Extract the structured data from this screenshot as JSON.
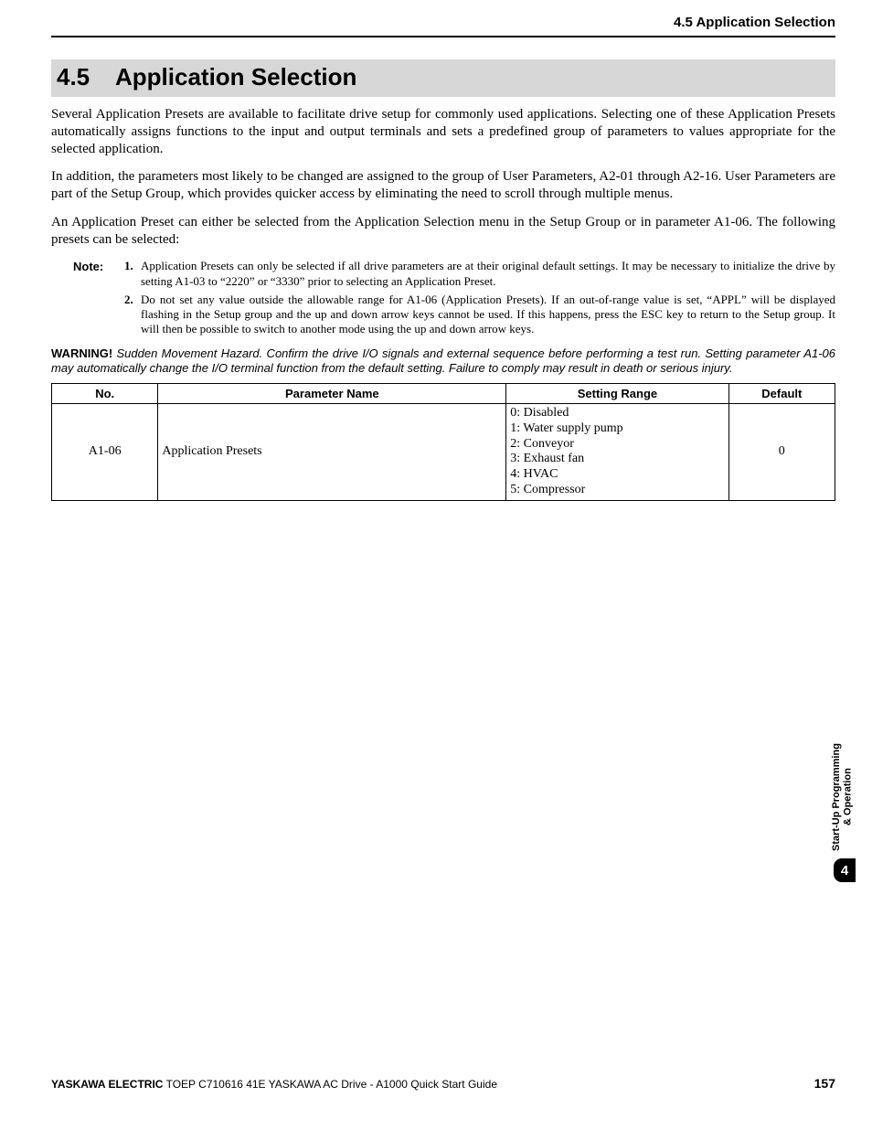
{
  "running_head": "4.5 Application Selection",
  "heading": {
    "num": "4.5",
    "title": "Application Selection"
  },
  "paras": [
    "Several Application Presets are available to facilitate drive setup for commonly used applications. Selecting one of these Application Presets automatically assigns functions to the input and output terminals and sets a predefined group of parameters to values appropriate for the selected application.",
    "In addition, the parameters most likely to be changed are assigned to the group of User Parameters, A2-01 through A2-16. User Parameters are part of the Setup Group, which provides quicker access by eliminating the need to scroll through multiple menus.",
    "An Application Preset can either be selected from the Application Selection menu in the Setup Group or in parameter A1-06. The following presets can be selected:"
  ],
  "note_label": "Note:",
  "notes": [
    "Application Presets can only be selected if all drive parameters are at their original default settings. It may be necessary to initialize the drive by setting A1-03 to “2220” or “3330” prior to selecting an Application Preset.",
    "Do not set any value outside the allowable range for A1-06 (Application Presets). If an out-of-range value is set, “APPL” will be displayed flashing in the Setup group and the up and down arrow keys cannot be used. If this happens, press the ESC key to return to the Setup group. It will then be possible to switch to another mode using the up and down arrow keys."
  ],
  "warning_label": "WARNING!",
  "warning_text": "Sudden Movement Hazard. Confirm the drive I/O signals and external sequence before performing a test run. Setting parameter A1-06 may automatically change the I/O terminal function from the default setting. Failure to comply may result in death or serious injury.",
  "table": {
    "head": {
      "no": "No.",
      "name": "Parameter Name",
      "range": "Setting Range",
      "def": "Default"
    },
    "row": {
      "no": "A1-06",
      "name": "Application Presets",
      "range": [
        "0: Disabled",
        "1: Water supply pump",
        "2: Conveyor",
        "3: Exhaust fan",
        "4: HVAC",
        "5: Compressor"
      ],
      "def": "0"
    }
  },
  "side": {
    "line1": "Start-Up Programming",
    "line2": "& Operation",
    "num": "4"
  },
  "footer": {
    "brand": "YASKAWA ELECTRIC",
    "rest": " TOEP C710616 41E YASKAWA AC Drive - A1000 Quick Start Guide",
    "page": "157"
  }
}
